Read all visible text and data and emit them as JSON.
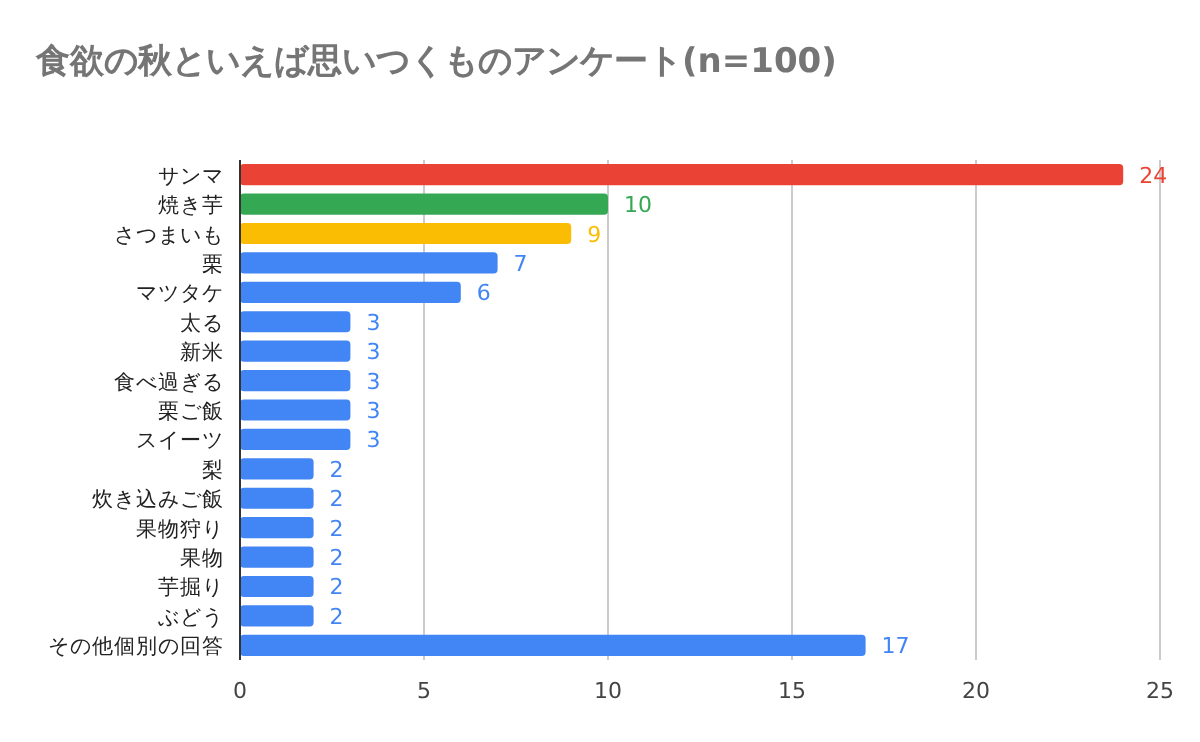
{
  "chart_data": {
    "type": "bar",
    "orientation": "horizontal",
    "title": "食欲の秋といえば思いつくものアンケート(n=100)",
    "categories": [
      "サンマ",
      "焼き芋",
      "さつまいも",
      "栗",
      "マツタケ",
      "太る",
      "新米",
      "食べ過ぎる",
      "栗ご飯",
      "スイーツ",
      "梨",
      "炊き込みご飯",
      "果物狩り",
      "果物",
      "芋掘り",
      "ぶどう",
      "その他個別の回答"
    ],
    "values": [
      24,
      10,
      9,
      7,
      6,
      3,
      3,
      3,
      3,
      3,
      2,
      2,
      2,
      2,
      2,
      2,
      17
    ],
    "colors": [
      "#ea4335",
      "#34a853",
      "#fbbc04",
      "#4285f4",
      "#4285f4",
      "#4285f4",
      "#4285f4",
      "#4285f4",
      "#4285f4",
      "#4285f4",
      "#4285f4",
      "#4285f4",
      "#4285f4",
      "#4285f4",
      "#4285f4",
      "#4285f4",
      "#4285f4"
    ],
    "xlim": [
      0,
      25
    ],
    "xticks": [
      0,
      5,
      10,
      15,
      20,
      25
    ],
    "grid": "x",
    "data_labels": true
  }
}
